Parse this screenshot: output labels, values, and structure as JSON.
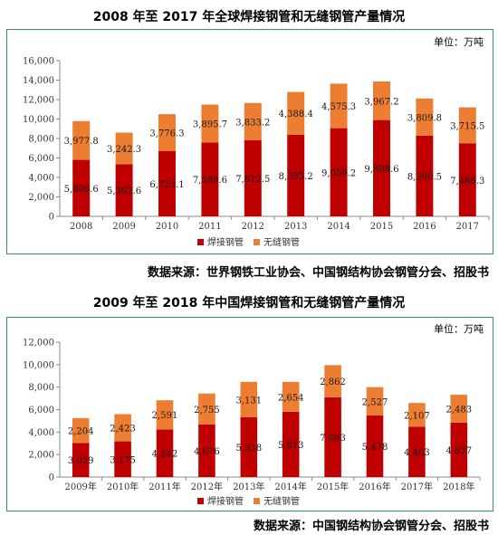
{
  "chart_data": [
    {
      "type": "bar",
      "stacked": true,
      "title": "2008 年至 2017 年全球焊接钢管和无缝钢管产量情况",
      "unit": "单位：万吨",
      "categories": [
        "2008",
        "2009",
        "2010",
        "2011",
        "2012",
        "2013",
        "2014",
        "2015",
        "2016",
        "2017"
      ],
      "series": [
        {
          "name": "焊接钢管",
          "color": "#c00000",
          "values": [
            5806.6,
            5362.6,
            6723.1,
            7588.6,
            7812.5,
            8395.2,
            9059.2,
            9898.6,
            8300.5,
            7488.3
          ],
          "labels": [
            "5,806.6",
            "5,362.6",
            "6,723.1",
            "7,588.6",
            "7,812.5",
            "8,395.2",
            "9,059.2",
            "9,898.6",
            "8,300.5",
            "7,488.3"
          ]
        },
        {
          "name": "无缝钢管",
          "color": "#ed7d31",
          "values": [
            3977.8,
            3242.3,
            3776.3,
            3895.7,
            3833.2,
            4388.4,
            4575.3,
            3967.2,
            3809.8,
            3715.5
          ],
          "labels": [
            "3,977.8",
            "3,242.3",
            "3,776.3",
            "3,895.7",
            "3,833.2",
            "4,388.4",
            "4,575.3",
            "3,967.2",
            "3,809.8",
            "3,715.5"
          ]
        }
      ],
      "ylim": [
        0,
        16000
      ],
      "yticks": [
        "0",
        "2,000",
        "4,000",
        "6,000",
        "8,000",
        "10,000",
        "12,000",
        "14,000",
        "16,000"
      ],
      "legend": "bottom",
      "source": "数据来源：世界钢铁工业协会、中国钢结构协会钢管分会、招股书"
    },
    {
      "type": "bar",
      "stacked": true,
      "title": "2009 年至 2018 年中国焊接钢管和无缝钢管产量情况",
      "unit": "单位：万吨",
      "categories": [
        "2009年",
        "2010年",
        "2011年",
        "2012年",
        "2013年",
        "2014年",
        "2015年",
        "2016年",
        "2017年",
        "2018年"
      ],
      "series": [
        {
          "name": "焊接钢管",
          "color": "#c00000",
          "values": [
            3039,
            3175,
            4242,
            4676,
            5338,
            5813,
            7093,
            5478,
            4483,
            4837
          ],
          "labels": [
            "3,039",
            "3,175",
            "4,242",
            "4,676",
            "5,338",
            "5,813",
            "7,093",
            "5,478",
            "4,483",
            "4,837"
          ]
        },
        {
          "name": "无缝钢管",
          "color": "#ed7d31",
          "values": [
            2204,
            2423,
            2591,
            2755,
            3131,
            2654,
            2862,
            2527,
            2107,
            2483
          ],
          "labels": [
            "2,204",
            "2,423",
            "2,591",
            "2,755",
            "3,131",
            "2,654",
            "2,862",
            "2,527",
            "2,107",
            "2,483"
          ]
        }
      ],
      "ylim": [
        0,
        12000
      ],
      "yticks": [
        "0",
        "2,000",
        "4,000",
        "6,000",
        "8,000",
        "10,000",
        "12,000"
      ],
      "legend": "bottom",
      "source": "数据来源：中国钢结构协会钢管分会、招股书"
    }
  ]
}
